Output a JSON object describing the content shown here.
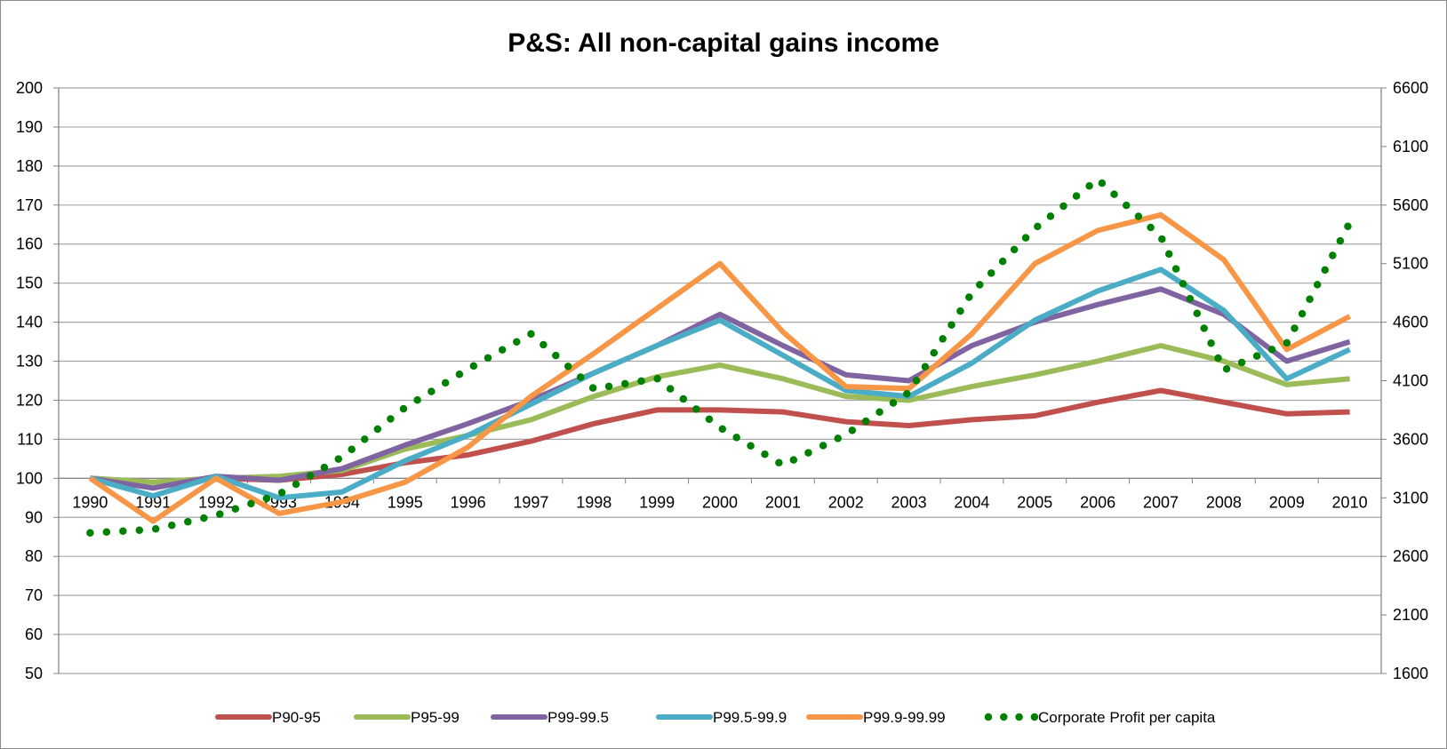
{
  "chart_data": {
    "type": "line",
    "title": "P&S: All non-capital gains income",
    "xlabel": "",
    "ylabel": "",
    "y2label": "",
    "categories": [
      "1990",
      "1991",
      "1992",
      "1993",
      "1994",
      "1995",
      "1996",
      "1997",
      "1998",
      "1999",
      "2000",
      "2001",
      "2002",
      "2003",
      "2004",
      "2005",
      "2006",
      "2007",
      "2008",
      "2009",
      "2010"
    ],
    "ylim": [
      50,
      200
    ],
    "yticks": [
      50,
      60,
      70,
      80,
      90,
      100,
      110,
      120,
      130,
      140,
      150,
      160,
      170,
      180,
      190,
      200
    ],
    "y2lim": [
      1600,
      6600
    ],
    "y2ticks": [
      1600,
      2100,
      2600,
      3100,
      3600,
      4100,
      4600,
      5100,
      5600,
      6100,
      6600
    ],
    "grid": true,
    "legend_position": "bottom",
    "series": [
      {
        "name": "P90-95",
        "axis": "left",
        "style": "solid",
        "color": "#c0504d",
        "values": [
          100,
          99,
          100,
          99.5,
          101,
          104,
          106,
          109.5,
          114,
          117.5,
          117.5,
          117,
          114.5,
          113.5,
          115,
          116,
          119.5,
          122.5,
          119.5,
          116.5,
          117
        ]
      },
      {
        "name": "P95-99",
        "axis": "left",
        "style": "solid",
        "color": "#9bbb59",
        "values": [
          100,
          99,
          100,
          100.5,
          102,
          107.5,
          111,
          115,
          121,
          126,
          129,
          125.5,
          121,
          120,
          123.5,
          126.5,
          130,
          134,
          130,
          124,
          125.5
        ]
      },
      {
        "name": "P99-99.5",
        "axis": "left",
        "style": "solid",
        "color": "#8064a2",
        "values": [
          100,
          97.5,
          100.5,
          99.5,
          102.5,
          108.5,
          114,
          120,
          127,
          134,
          142,
          134,
          126.5,
          125,
          134,
          140,
          144.5,
          148.5,
          142,
          130,
          135
        ]
      },
      {
        "name": "P99.5-99.9",
        "axis": "left",
        "style": "solid",
        "color": "#4bacc6",
        "values": [
          100,
          95.5,
          100.5,
          95,
          96.5,
          104.5,
          111,
          119,
          127,
          134,
          140.5,
          131.5,
          122.5,
          121,
          129.5,
          140.5,
          148,
          153.5,
          143,
          125.5,
          133
        ]
      },
      {
        "name": "P99.9-99.99",
        "axis": "left",
        "style": "solid",
        "color": "#f79646",
        "values": [
          100,
          89,
          100,
          91,
          94,
          99,
          108,
          121,
          132,
          143.5,
          155,
          137.5,
          123.5,
          123,
          137,
          155,
          163.5,
          167.5,
          156,
          133,
          141.5
        ]
      },
      {
        "name": "Corporate Profit per capita",
        "axis": "right",
        "style": "dotted",
        "color": "#008000",
        "values": [
          2800,
          2830,
          2950,
          3130,
          3450,
          3870,
          4200,
          4500,
          4030,
          4120,
          3700,
          3380,
          3640,
          4000,
          4850,
          5400,
          5820,
          5330,
          4190,
          4420,
          5450
        ]
      }
    ]
  }
}
